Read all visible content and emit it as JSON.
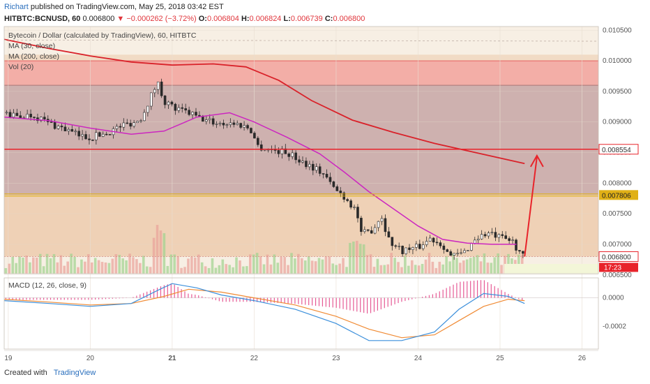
{
  "header": {
    "author": "Richart",
    "published": "published on TradingView.com, May 25, 2018 03:42 EST",
    "symbol": "HITBTC:BCNUSD, 60",
    "last": "0.006800",
    "change_arrow": "▼",
    "change": "−0.000262 (−3.72%)",
    "o_label": "O:",
    "o": "0.006804",
    "h_label": "H:",
    "h": "0.006824",
    "l_label": "L:",
    "l": "0.006739",
    "c_label": "C:",
    "c": "0.006800"
  },
  "legend": {
    "title": "Bytecoin / Dollar (calculated by TradingView), 60, HITBTC",
    "ma30": "MA (30, close)",
    "ma200": "MA (200, close)",
    "vol": "Vol (20)",
    "macd": "MACD (12, 26, close, 9)"
  },
  "footer": {
    "created": "Created with",
    "brand": "TradingView"
  },
  "colors": {
    "candle_up": "#2a2a2a",
    "candle_down": "#2a2a2a",
    "ma30": "#cc27c0",
    "ma200": "#d9222a",
    "resistance": "#e8232a",
    "support": "#e0b016",
    "zone_upper": "#f2a6a0",
    "zone_middle": "#c9aaa8",
    "zone_lower": "#edcdb0",
    "macd_line": "#3b8fdb",
    "signal_line": "#f08a33",
    "hist": "#e0307a",
    "arrow": "#e8232a"
  },
  "chart_data": [
    {
      "type": "candlestick",
      "title": "Bytecoin / Dollar (calculated by TradingView), 60, HITBTC",
      "x_ticks": [
        "19",
        "20",
        "21",
        "22",
        "23",
        "24",
        "25",
        "26"
      ],
      "y_ticks": [
        "0.010500",
        "0.010000",
        "0.009500",
        "0.009000",
        "0.008500",
        "0.008000",
        "0.007500",
        "0.007000",
        "0.006500"
      ],
      "ylim": [
        0.00652,
        0.01056
      ],
      "xlim": [
        18.95,
        26.2
      ],
      "price_labels": [
        "0.008554",
        "0.007806",
        "0.006800"
      ],
      "countdown_label": "17:23",
      "levels": {
        "resistance": 0.008554,
        "support": 0.007806,
        "current": 0.0068
      },
      "zones": [
        {
          "name": "upper",
          "from": 0.0096,
          "to": 0.01
        },
        {
          "name": "middle",
          "from": 0.007806,
          "to": 0.0096
        },
        {
          "name": "lower",
          "from": 0.0068,
          "to": 0.007806
        }
      ],
      "path_points": [
        [
          18.95,
          0.00915
        ],
        [
          19.1,
          0.00908
        ],
        [
          19.3,
          0.00912
        ],
        [
          19.5,
          0.00898
        ],
        [
          19.7,
          0.00888
        ],
        [
          19.85,
          0.00878
        ],
        [
          20.0,
          0.00875
        ],
        [
          20.2,
          0.00882
        ],
        [
          20.4,
          0.00895
        ],
        [
          20.6,
          0.00902
        ],
        [
          20.75,
          0.00945
        ],
        [
          20.82,
          0.00965
        ],
        [
          20.9,
          0.00935
        ],
        [
          21.05,
          0.0092
        ],
        [
          21.2,
          0.00915
        ],
        [
          21.35,
          0.00905
        ],
        [
          21.55,
          0.00898
        ],
        [
          21.75,
          0.00898
        ],
        [
          21.95,
          0.0089
        ],
        [
          22.05,
          0.0086
        ],
        [
          22.2,
          0.00855
        ],
        [
          22.4,
          0.0085
        ],
        [
          22.55,
          0.00838
        ],
        [
          22.7,
          0.00828
        ],
        [
          22.85,
          0.00815
        ],
        [
          22.95,
          0.00795
        ],
        [
          23.1,
          0.00778
        ],
        [
          23.25,
          0.00755
        ],
        [
          23.3,
          0.00715
        ],
        [
          23.45,
          0.00725
        ],
        [
          23.55,
          0.00748
        ],
        [
          23.65,
          0.00705
        ],
        [
          23.8,
          0.0069
        ],
        [
          24.0,
          0.00695
        ],
        [
          24.15,
          0.0071
        ],
        [
          24.3,
          0.007
        ],
        [
          24.4,
          0.0068
        ],
        [
          24.55,
          0.00685
        ],
        [
          24.7,
          0.0071
        ],
        [
          24.85,
          0.00718
        ],
        [
          25.0,
          0.0071
        ],
        [
          25.15,
          0.00705
        ],
        [
          25.28,
          0.0068
        ]
      ],
      "series": [
        {
          "name": "MA (30, close)",
          "points": [
            [
              18.95,
              0.00908
            ],
            [
              19.5,
              0.00902
            ],
            [
              20.0,
              0.0089
            ],
            [
              20.5,
              0.0088
            ],
            [
              20.9,
              0.00885
            ],
            [
              21.3,
              0.00908
            ],
            [
              21.7,
              0.00915
            ],
            [
              22.0,
              0.009
            ],
            [
              22.4,
              0.00875
            ],
            [
              22.8,
              0.00848
            ],
            [
              23.1,
              0.00818
            ],
            [
              23.4,
              0.00786
            ],
            [
              23.7,
              0.00758
            ],
            [
              24.0,
              0.0073
            ],
            [
              24.3,
              0.00708
            ],
            [
              24.6,
              0.00702
            ],
            [
              24.9,
              0.007
            ],
            [
              25.2,
              0.007
            ]
          ]
        },
        {
          "name": "MA (200, close)",
          "points": [
            [
              18.95,
              0.01035
            ],
            [
              19.5,
              0.0102
            ],
            [
              20.0,
              0.01008
            ],
            [
              20.5,
              0.00998
            ],
            [
              21.0,
              0.00993
            ],
            [
              21.5,
              0.00995
            ],
            [
              21.9,
              0.0099
            ],
            [
              22.3,
              0.00968
            ],
            [
              22.7,
              0.00935
            ],
            [
              23.2,
              0.00903
            ],
            [
              23.7,
              0.00883
            ],
            [
              24.2,
              0.00865
            ],
            [
              24.7,
              0.0085
            ],
            [
              25.1,
              0.00838
            ],
            [
              25.3,
              0.00832
            ]
          ]
        }
      ],
      "arrow": {
        "from": [
          25.3,
          0.0068
        ],
        "to": [
          25.45,
          0.00845
        ]
      },
      "volume_label": "Vol (20)"
    },
    {
      "type": "line",
      "title": "MACD (12, 26, close, 9)",
      "y_ticks": [
        "0.0000",
        "-0.0002"
      ],
      "ylim": [
        -0.00036,
        0.00014
      ],
      "series": [
        {
          "name": "MACD",
          "points": [
            [
              18.95,
              -2e-05
            ],
            [
              19.5,
              -4e-05
            ],
            [
              20.0,
              -6e-05
            ],
            [
              20.5,
              -4e-05
            ],
            [
              20.85,
              6e-05
            ],
            [
              21.0,
              0.0001
            ],
            [
              21.3,
              7e-05
            ],
            [
              21.6,
              2e-05
            ],
            [
              22.0,
              -2e-05
            ],
            [
              22.5,
              -8e-05
            ],
            [
              23.0,
              -0.00018
            ],
            [
              23.4,
              -0.0003
            ],
            [
              23.8,
              -0.0003
            ],
            [
              24.2,
              -0.00024
            ],
            [
              24.5,
              -8e-05
            ],
            [
              24.8,
              3e-05
            ],
            [
              25.1,
              1e-05
            ],
            [
              25.3,
              -4e-05
            ]
          ]
        },
        {
          "name": "Signal",
          "points": [
            [
              18.95,
              -1e-05
            ],
            [
              19.5,
              -3e-05
            ],
            [
              20.0,
              -5e-05
            ],
            [
              20.5,
              -4e-05
            ],
            [
              20.9,
              1e-05
            ],
            [
              21.2,
              6e-05
            ],
            [
              21.6,
              4e-05
            ],
            [
              22.0,
              0.0
            ],
            [
              22.5,
              -5e-05
            ],
            [
              23.0,
              -0.00013
            ],
            [
              23.4,
              -0.00022
            ],
            [
              23.8,
              -0.00028
            ],
            [
              24.2,
              -0.00026
            ],
            [
              24.5,
              -0.00016
            ],
            [
              24.8,
              -6e-05
            ],
            [
              25.1,
              -1e-05
            ],
            [
              25.3,
              -2e-05
            ]
          ]
        }
      ]
    }
  ]
}
